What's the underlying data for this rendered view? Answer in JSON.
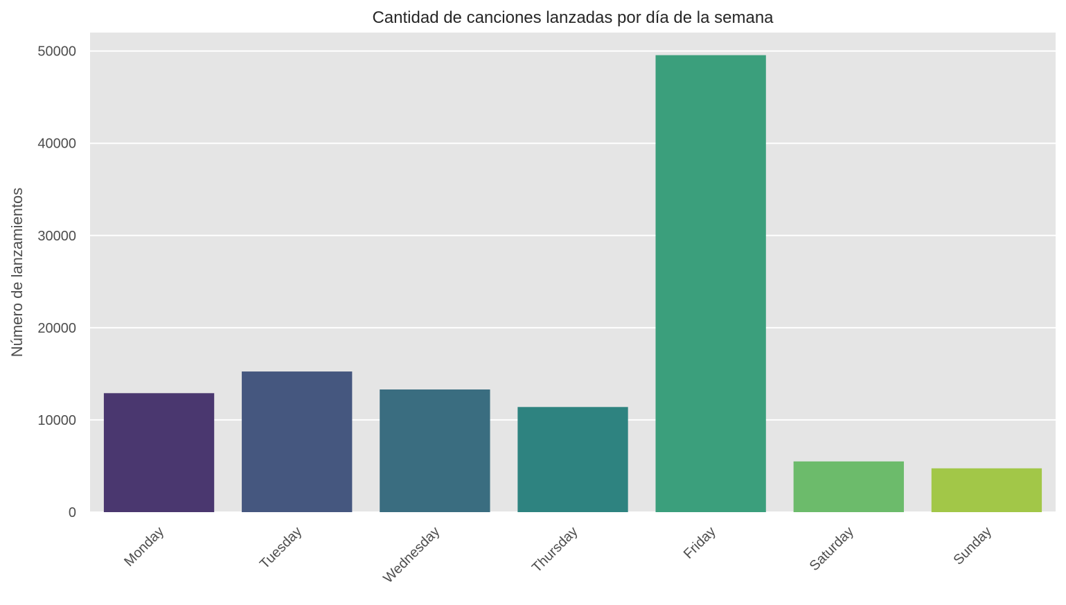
{
  "chart_data": {
    "type": "bar",
    "title": "Cantidad de canciones lanzadas por día de la semana",
    "xlabel": "",
    "ylabel": "Número de lanzamientos",
    "categories": [
      "Monday",
      "Tuesday",
      "Wednesday",
      "Thursday",
      "Friday",
      "Saturday",
      "Sunday"
    ],
    "values": [
      12900,
      15250,
      13300,
      11400,
      49550,
      5500,
      4750
    ],
    "colors": [
      "#4a376f",
      "#45577f",
      "#3a6d80",
      "#2e8380",
      "#3b9f7c",
      "#6cbb6b",
      "#a2c748"
    ],
    "yticks": [
      0,
      10000,
      20000,
      30000,
      40000,
      50000
    ],
    "ylim": [
      0,
      52000
    ],
    "grid": true,
    "background": "#e5e5e5",
    "gridColor": "#ffffff"
  }
}
